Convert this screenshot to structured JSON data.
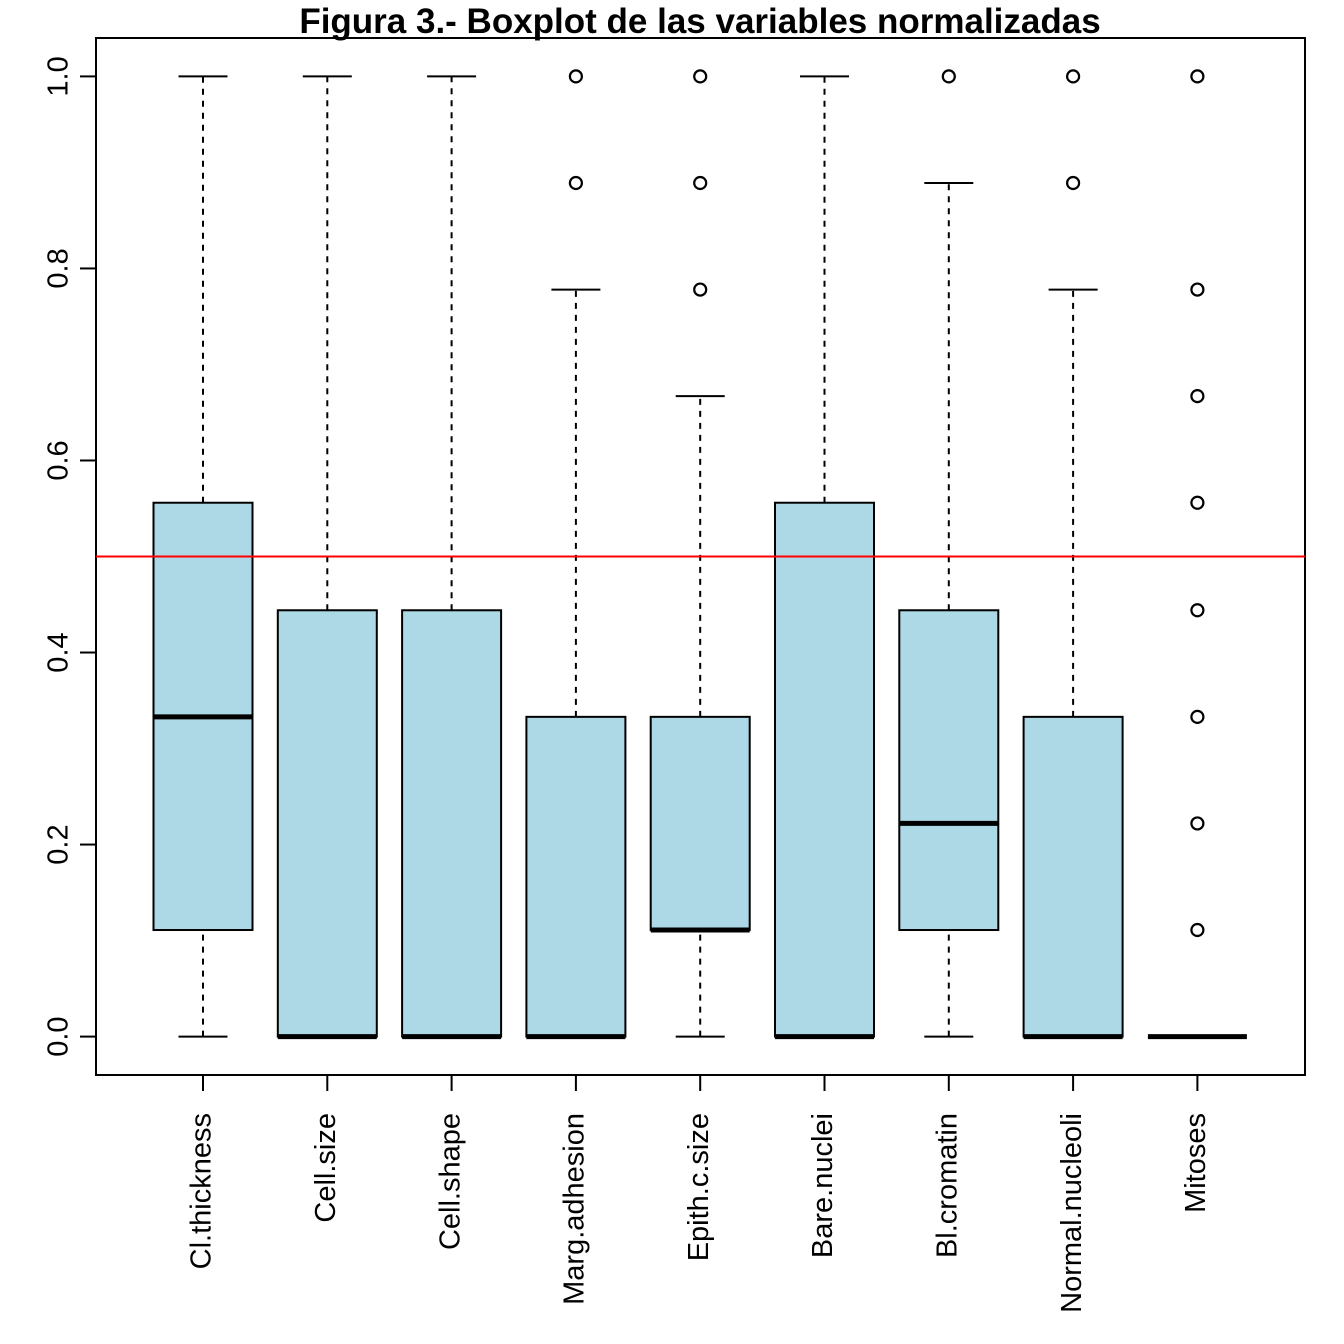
{
  "chart_data": {
    "type": "boxplot",
    "title": "Figura 3.- Boxplot de las variables normalizadas",
    "xlabel": "",
    "ylabel": "",
    "ylim": [
      -0.04,
      1.04
    ],
    "yticks": [
      "0.0",
      "0.2",
      "0.4",
      "0.6",
      "0.8",
      "1.0"
    ],
    "reference_line": {
      "y": 0.5,
      "color": "#ff0000"
    },
    "box_color": "#add8e6",
    "grid": false,
    "legend": "none",
    "categories": [
      "Cl.thickness",
      "Cell.size",
      "Cell.shape",
      "Marg.adhesion",
      "Epith.c.size",
      "Bare.nuclei",
      "Bl.cromatin",
      "Normal.nucleoli",
      "Mitoses"
    ],
    "boxes": [
      {
        "whisker_low": 0.0,
        "q1": 0.111,
        "median": 0.333,
        "q3": 0.556,
        "whisker_high": 1.0,
        "outliers": []
      },
      {
        "whisker_low": 0.0,
        "q1": 0.0,
        "median": 0.0,
        "q3": 0.444,
        "whisker_high": 1.0,
        "outliers": []
      },
      {
        "whisker_low": 0.0,
        "q1": 0.0,
        "median": 0.0,
        "q3": 0.444,
        "whisker_high": 1.0,
        "outliers": []
      },
      {
        "whisker_low": 0.0,
        "q1": 0.0,
        "median": 0.0,
        "q3": 0.333,
        "whisker_high": 0.778,
        "outliers": [
          0.889,
          1.0
        ]
      },
      {
        "whisker_low": 0.0,
        "q1": 0.111,
        "median": 0.111,
        "q3": 0.333,
        "whisker_high": 0.667,
        "outliers": [
          0.778,
          0.889,
          1.0
        ]
      },
      {
        "whisker_low": 0.0,
        "q1": 0.0,
        "median": 0.0,
        "q3": 0.556,
        "whisker_high": 1.0,
        "outliers": []
      },
      {
        "whisker_low": 0.0,
        "q1": 0.111,
        "median": 0.222,
        "q3": 0.444,
        "whisker_high": 0.889,
        "outliers": [
          1.0
        ]
      },
      {
        "whisker_low": 0.0,
        "q1": 0.0,
        "median": 0.0,
        "q3": 0.333,
        "whisker_high": 0.778,
        "outliers": [
          0.889,
          1.0
        ]
      },
      {
        "whisker_low": 0.0,
        "q1": 0.0,
        "median": 0.0,
        "q3": 0.0,
        "whisker_high": 0.0,
        "outliers": [
          0.111,
          0.222,
          0.333,
          0.444,
          0.556,
          0.667,
          0.778,
          1.0
        ]
      }
    ]
  }
}
